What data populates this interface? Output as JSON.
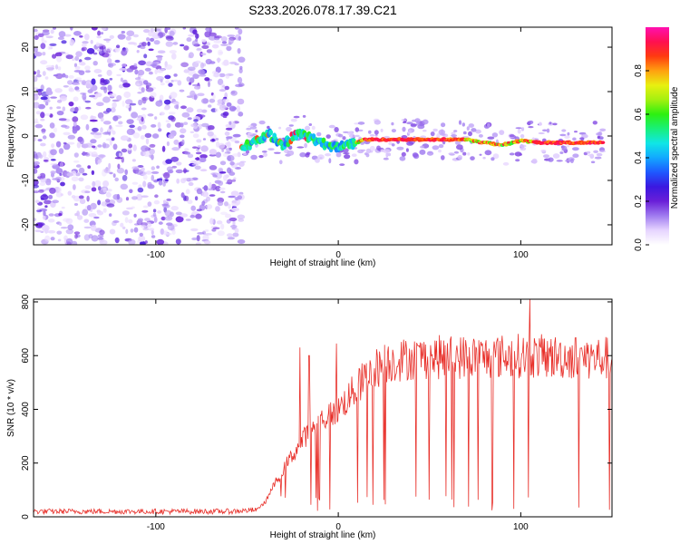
{
  "title": "S233.2026.078.17.39.C21",
  "chart_data": [
    {
      "type": "heatmap",
      "name": "spectrogram",
      "xlabel": "Height of straight line (km)",
      "ylabel": "Frequency (Hz)",
      "xlim": [
        -167,
        150
      ],
      "ylim": [
        -24.5,
        24.5
      ],
      "xticks": [
        -100,
        0,
        100
      ],
      "yticks": [
        -20,
        -10,
        0,
        10,
        20
      ],
      "noise_region": {
        "x_start": -167,
        "x_end": -53,
        "f_min": -24.5,
        "f_max": 24.5
      },
      "signal_ridge": {
        "x": [
          -53,
          -50,
          -46,
          -42,
          -38,
          -34,
          -30,
          -26,
          -22,
          -18,
          -14,
          -10,
          -6,
          -2,
          2,
          6,
          10,
          14,
          20,
          30,
          40,
          50,
          60,
          70,
          75,
          80,
          85,
          88,
          92,
          96,
          100,
          105,
          110,
          115,
          120,
          125,
          130,
          135,
          140,
          145
        ],
        "f": [
          -2.5,
          -2,
          -1.5,
          -0.5,
          0.5,
          -1,
          -2,
          -0.5,
          0.5,
          0,
          -0.5,
          -1.5,
          -2,
          -2.5,
          -2,
          -1.8,
          -1.5,
          -0.8,
          -0.8,
          -0.8,
          -0.8,
          -0.8,
          -0.8,
          -0.8,
          -1.2,
          -1.5,
          -1.8,
          -2,
          -1.8,
          -1.5,
          -1,
          -1.3,
          -1.5,
          -1.5,
          -1.5,
          -1.5,
          -1.5,
          -1.5,
          -1.5,
          -1.5
        ]
      }
    },
    {
      "type": "line",
      "name": "snr",
      "xlabel": "Height of straight line (km)",
      "ylabel": "SNR (10 * v/v)",
      "xlim": [
        -167,
        150
      ],
      "ylim": [
        0,
        810
      ],
      "xticks": [
        -100,
        0,
        100
      ],
      "yticks": [
        0,
        200,
        400,
        600,
        800
      ],
      "color": "#e8302a",
      "envelope": {
        "x": [
          -167,
          -60,
          -45,
          -40,
          -35,
          -30,
          -25,
          -20,
          -15,
          -10,
          -5,
          0,
          5,
          10,
          15,
          20,
          25,
          30,
          40,
          60,
          80,
          100,
          120,
          150
        ],
        "snr": [
          20,
          20,
          25,
          55,
          120,
          180,
          230,
          280,
          330,
          360,
          380,
          400,
          440,
          480,
          520,
          550,
          570,
          580,
          590,
          595,
          595,
          600,
          595,
          590
        ]
      },
      "spikes": [
        {
          "x": -21,
          "snr": 630
        },
        {
          "x": -16,
          "snr": 600
        },
        {
          "x": -1,
          "snr": 645
        },
        {
          "x": 105,
          "snr": 810
        }
      ]
    }
  ],
  "colorbar": {
    "label": "Normalized spectral amplitude",
    "ticks": [
      "0.0",
      "0.2",
      "0.4",
      "0.6",
      "0.8"
    ],
    "tick_values": [
      0,
      0.2,
      0.4,
      0.6,
      0.8
    ],
    "range": [
      0,
      1
    ],
    "colors": [
      "#ffffff",
      "#e6d4ff",
      "#a07cf0",
      "#6a1fd8",
      "#3a18e0",
      "#1e58ff",
      "#12a8ff",
      "#10e6e6",
      "#18f07a",
      "#2df010",
      "#a4f010",
      "#e8f010",
      "#ffa010",
      "#ff3a10",
      "#ff1050",
      "#ff10b0"
    ]
  }
}
